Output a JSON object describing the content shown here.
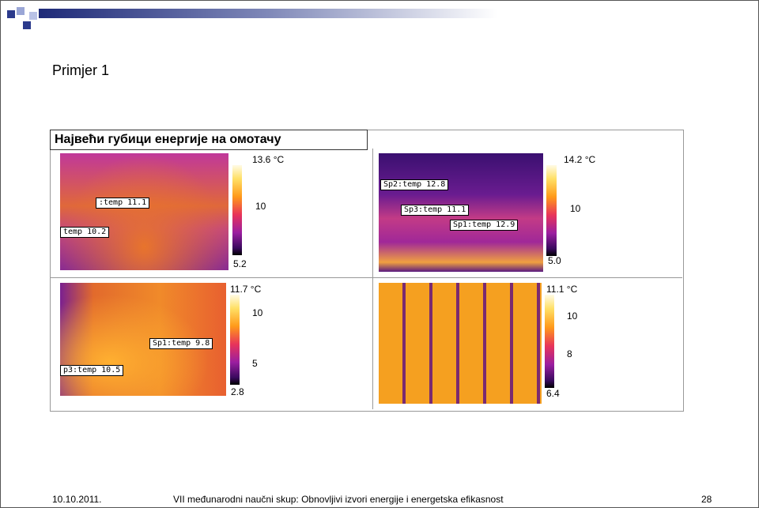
{
  "header": {
    "title": "Primjer 1"
  },
  "figure": {
    "heading": "Највећи губици енергије на омотачу",
    "panels": [
      {
        "scale": [
          "13.6 °C",
          "10",
          "5.2"
        ],
        "labels": [
          ":temp 11.1",
          "temp 10.2"
        ]
      },
      {
        "scale": [
          "14.2 °C",
          "10",
          "5.0"
        ],
        "labels": [
          "Sp2:temp 12.8",
          "Sp3:temp 11.1",
          "Sp1:temp 12.9"
        ]
      },
      {
        "scale": [
          "11.7 °C",
          "10",
          "5",
          "2.8"
        ],
        "labels": [
          "Sp1:temp 9.8",
          "p3:temp 10.5"
        ]
      },
      {
        "scale": [
          "11.1 °C",
          "10",
          "8",
          "6.4"
        ]
      }
    ]
  },
  "footer": {
    "date": "10.10.2011.",
    "event": "VII međunarodni naučni skup: Obnovljivi izvori energije i energetska efikasnost",
    "page": "28"
  }
}
